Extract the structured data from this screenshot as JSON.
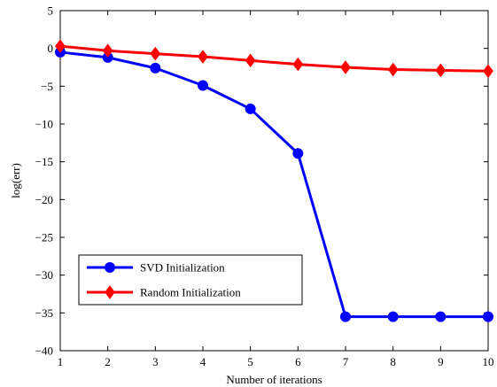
{
  "chart_data": {
    "type": "line",
    "xlabel": "Number of iterations",
    "ylabel": "log(err)",
    "xlim": [
      1,
      10
    ],
    "ylim": [
      -40,
      5
    ],
    "x_ticks": [
      1,
      2,
      3,
      4,
      5,
      6,
      7,
      8,
      9,
      10
    ],
    "y_ticks": [
      5,
      0,
      -5,
      -10,
      -15,
      -20,
      -25,
      -30,
      -35,
      -40
    ],
    "y_tick_labels": [
      "5",
      "0",
      "−5",
      "−10",
      "−15",
      "−20",
      "−25",
      "−30",
      "−35",
      "−40"
    ],
    "grid": false,
    "legend_position": "lower-left",
    "x": [
      1,
      2,
      3,
      4,
      5,
      6,
      7,
      8,
      9,
      10
    ],
    "series": [
      {
        "name": "SVD Initialization",
        "color": "#0000ff",
        "marker": "circle",
        "values": [
          -0.5,
          -1.2,
          -2.6,
          -4.9,
          -8.0,
          -13.9,
          -35.5,
          -35.5,
          -35.5,
          -35.5
        ]
      },
      {
        "name": "Random Initialization",
        "color": "#ff0000",
        "marker": "diamond",
        "values": [
          0.3,
          -0.3,
          -0.7,
          -1.1,
          -1.6,
          -2.1,
          -2.5,
          -2.8,
          -2.9,
          -3.0
        ]
      }
    ]
  }
}
